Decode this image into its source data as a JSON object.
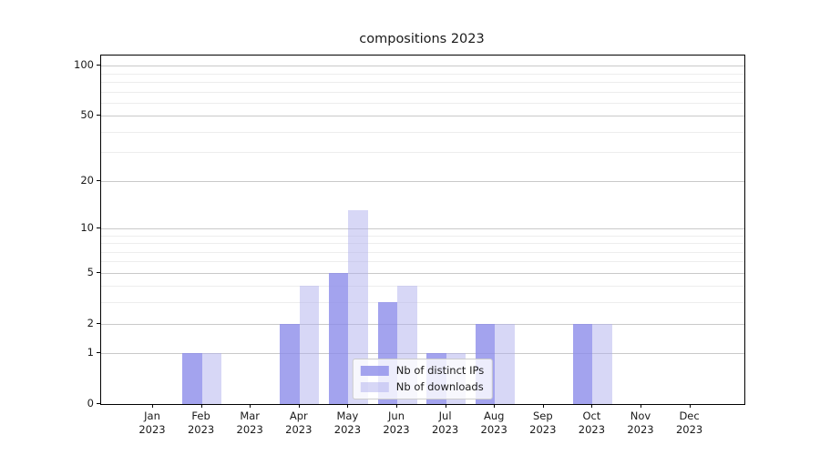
{
  "chart_data": {
    "type": "bar",
    "title": "compositions 2023",
    "categories": [
      "Jan",
      "Feb",
      "Mar",
      "Apr",
      "May",
      "Jun",
      "Jul",
      "Aug",
      "Sep",
      "Oct",
      "Nov",
      "Dec"
    ],
    "category_year": "2023",
    "series": [
      {
        "name": "Nb of distinct IPs",
        "color": "#8c8cea",
        "opacity": 0.8,
        "values": [
          0,
          1,
          0,
          2,
          5,
          3,
          1,
          2,
          0,
          2,
          0,
          0
        ]
      },
      {
        "name": "Nb of downloads",
        "color": "#b0b0ee",
        "opacity": 0.5,
        "values": [
          0,
          1,
          0,
          4,
          13,
          4,
          1,
          2,
          0,
          2,
          0,
          0
        ]
      }
    ],
    "yscale": "log1p",
    "ylim": [
      0,
      115
    ],
    "yticks": [
      0,
      1,
      2,
      5,
      10,
      20,
      50,
      100
    ],
    "minor_yticks": [
      3,
      4,
      6,
      7,
      8,
      9,
      30,
      40,
      60,
      70,
      80,
      90
    ],
    "grid": true,
    "legend_position": "lower center",
    "colors": {
      "grid_major": "#c9c9c9",
      "grid_minor": "#ededed",
      "axis": "#000000",
      "text": "#1a1a1a"
    }
  }
}
